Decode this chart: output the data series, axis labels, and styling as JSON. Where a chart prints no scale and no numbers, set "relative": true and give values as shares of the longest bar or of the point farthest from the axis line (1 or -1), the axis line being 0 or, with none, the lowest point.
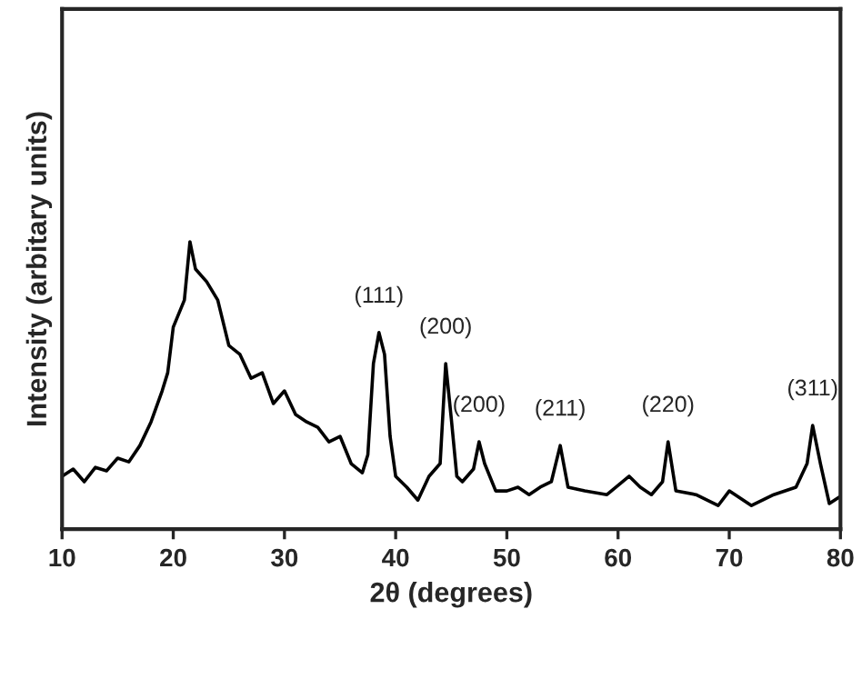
{
  "chart_data": {
    "type": "line",
    "relative": true,
    "xlabel": "2θ (degrees)",
    "ylabel": "Intensity (arbitary units)",
    "xlim": [
      10,
      80
    ],
    "xticks": [
      10,
      20,
      30,
      40,
      50,
      60,
      70,
      80
    ],
    "tick_labels": "x",
    "legend": false,
    "grid": false,
    "series": [
      {
        "color": "#000000",
        "x": [
          10,
          11,
          12,
          13,
          14,
          15,
          16,
          17,
          18,
          19,
          19.5,
          20,
          21,
          21.5,
          22,
          23,
          24,
          25,
          26,
          27,
          28,
          29,
          30,
          31,
          32,
          33,
          34,
          35,
          36,
          37,
          37.5,
          38,
          38.5,
          39,
          39.5,
          40,
          41,
          42,
          43,
          44,
          44.5,
          45,
          45.5,
          46,
          47,
          47.5,
          48,
          49,
          50,
          51,
          52,
          53,
          54,
          54.8,
          55.5,
          57,
          59,
          61,
          62,
          63,
          64,
          64.5,
          65.2,
          67,
          69,
          70,
          72,
          74,
          76,
          77,
          77.5,
          78.2,
          79,
          80
        ],
        "values": [
          0.184,
          0.209,
          0.165,
          0.215,
          0.203,
          0.247,
          0.234,
          0.291,
          0.373,
          0.481,
          0.544,
          0.703,
          0.797,
          1,
          0.905,
          0.861,
          0.797,
          0.639,
          0.608,
          0.525,
          0.544,
          0.437,
          0.481,
          0.399,
          0.373,
          0.354,
          0.304,
          0.323,
          0.228,
          0.196,
          0.259,
          0.576,
          0.684,
          0.608,
          0.323,
          0.184,
          0.146,
          0.101,
          0.184,
          0.228,
          0.576,
          0.386,
          0.184,
          0.165,
          0.209,
          0.304,
          0.228,
          0.133,
          0.133,
          0.146,
          0.12,
          0.146,
          0.165,
          0.291,
          0.146,
          0.133,
          0.12,
          0.184,
          0.146,
          0.12,
          0.165,
          0.304,
          0.133,
          0.12,
          0.082,
          0.133,
          0.082,
          0.12,
          0.146,
          0.228,
          0.361,
          0.228,
          0.089,
          0.114
        ]
      }
    ],
    "annotations": [
      {
        "text": "(111)",
        "x": 38.5,
        "y": 0.684
      },
      {
        "text": "(200)",
        "x": 44.5,
        "y": 0.576
      },
      {
        "text": "(200)",
        "x": 47.5,
        "y": 0.304
      },
      {
        "text": "(211)",
        "x": 54.8,
        "y": 0.291
      },
      {
        "text": "(220)",
        "x": 64.5,
        "y": 0.304
      },
      {
        "text": "(311)",
        "x": 77.5,
        "y": 0.361
      }
    ]
  }
}
